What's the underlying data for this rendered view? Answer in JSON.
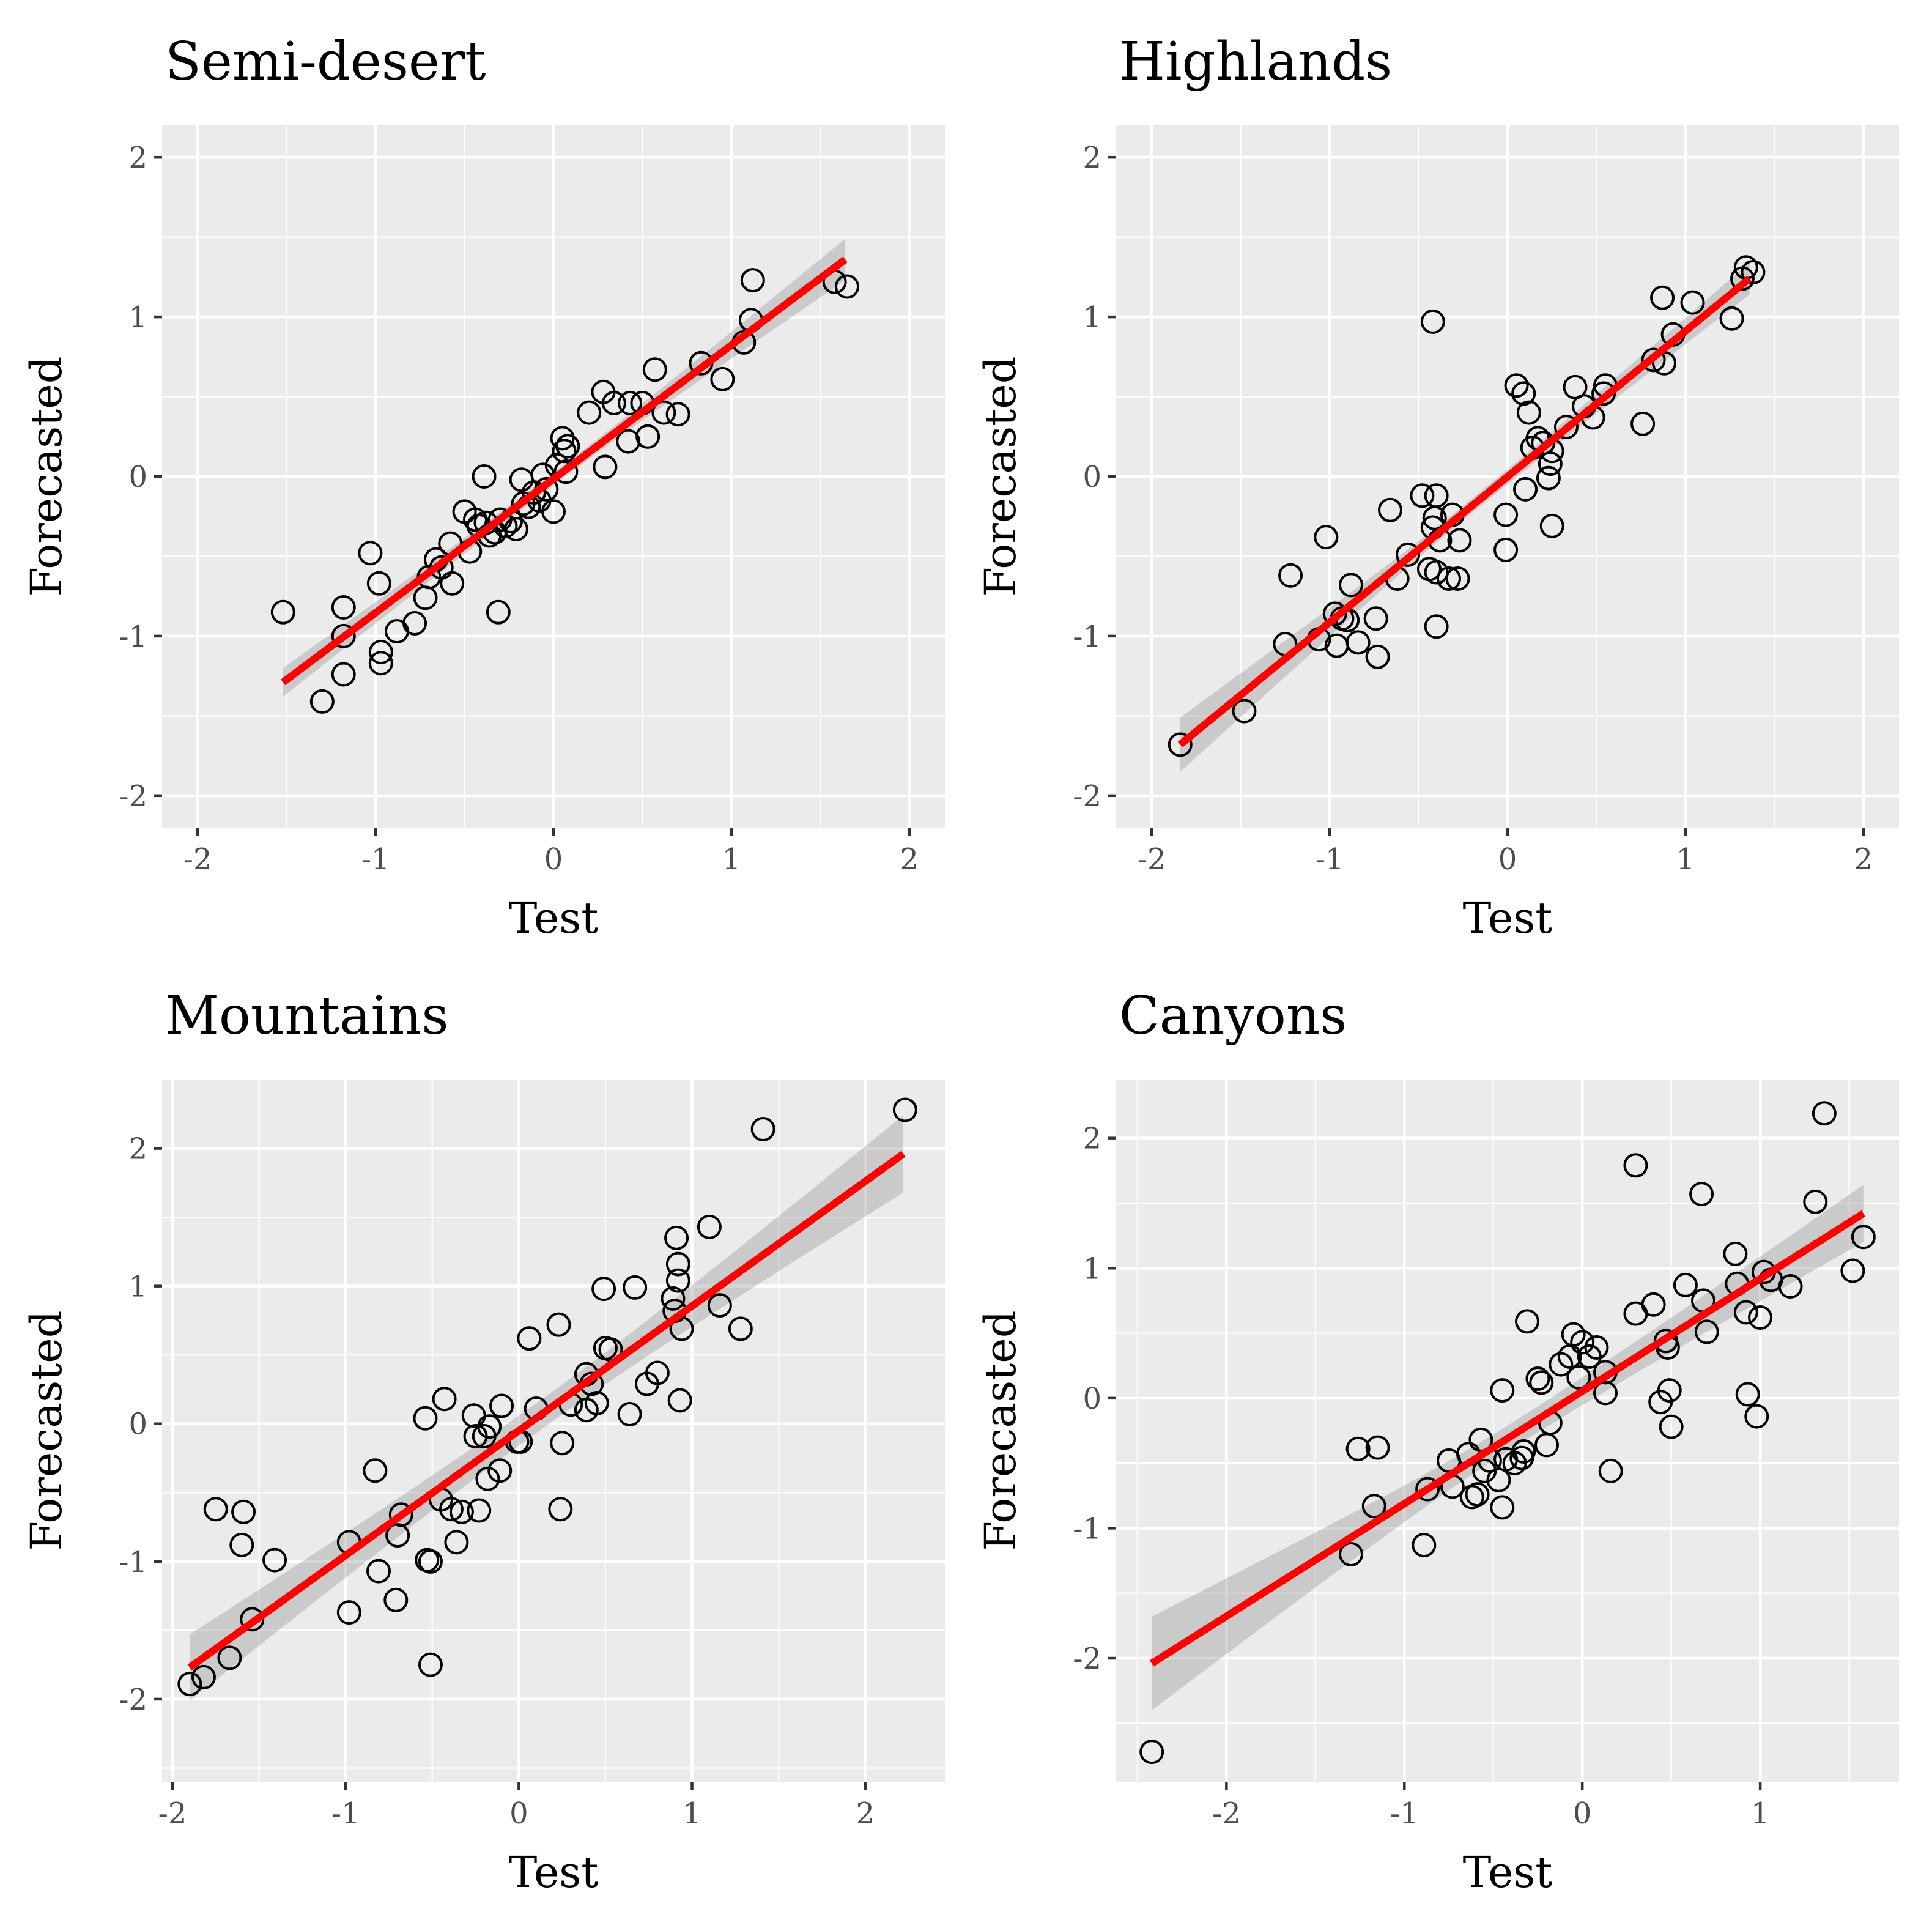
{
  "chart_data": [
    {
      "type": "scatter",
      "title": "Semi-desert",
      "xlabel": "Test",
      "ylabel": "Forecasted",
      "xlim": [
        -2.2,
        2.2
      ],
      "ylim": [
        -2.2,
        2.2
      ],
      "xticks": [
        -2,
        -1,
        0,
        1,
        2
      ],
      "yticks": [
        -2,
        -1,
        0,
        1,
        2
      ],
      "xtick_labels": [
        "-2",
        "-1",
        "0",
        "1",
        "2"
      ],
      "ytick_labels": [
        "-2",
        "-1",
        "0",
        "1",
        "2"
      ],
      "fit": {
        "x": [
          -1.52,
          1.64
        ],
        "y": [
          -1.29,
          1.36
        ],
        "se_halfwidth": [
          0.09,
          0.13
        ],
        "color": "#ff0000"
      },
      "points": [
        [
          -1.52,
          -0.85
        ],
        [
          -1.3,
          -1.41
        ],
        [
          -1.18,
          -0.82
        ],
        [
          -1.18,
          -1.0
        ],
        [
          -1.18,
          -1.24
        ],
        [
          -1.03,
          -0.48
        ],
        [
          -0.98,
          -0.67
        ],
        [
          -0.97,
          -1.1
        ],
        [
          -0.97,
          -1.17
        ],
        [
          -0.88,
          -0.97
        ],
        [
          -0.78,
          -0.92
        ],
        [
          -0.72,
          -0.76
        ],
        [
          -0.7,
          -0.63
        ],
        [
          -0.66,
          -0.52
        ],
        [
          -0.63,
          -0.57
        ],
        [
          -0.58,
          -0.42
        ],
        [
          -0.57,
          -0.67
        ],
        [
          -0.5,
          -0.22
        ],
        [
          -0.47,
          -0.47
        ],
        [
          -0.44,
          -0.27
        ],
        [
          -0.42,
          -0.31
        ],
        [
          -0.39,
          0.0
        ],
        [
          -0.38,
          -0.29
        ],
        [
          -0.36,
          -0.37
        ],
        [
          -0.33,
          -0.35
        ],
        [
          -0.31,
          -0.85
        ],
        [
          -0.3,
          -0.27
        ],
        [
          -0.27,
          -0.31
        ],
        [
          -0.24,
          -0.28
        ],
        [
          -0.21,
          -0.33
        ],
        [
          -0.18,
          -0.02
        ],
        [
          -0.17,
          -0.17
        ],
        [
          -0.14,
          -0.19
        ],
        [
          -0.11,
          -0.1
        ],
        [
          -0.08,
          -0.15
        ],
        [
          -0.06,
          0.01
        ],
        [
          -0.04,
          -0.08
        ],
        [
          0.0,
          -0.22
        ],
        [
          0.02,
          0.07
        ],
        [
          0.05,
          0.24
        ],
        [
          0.06,
          0.16
        ],
        [
          0.07,
          0.03
        ],
        [
          0.08,
          0.19
        ],
        [
          0.2,
          0.4
        ],
        [
          0.28,
          0.53
        ],
        [
          0.29,
          0.06
        ],
        [
          0.34,
          0.46
        ],
        [
          0.42,
          0.22
        ],
        [
          0.43,
          0.46
        ],
        [
          0.5,
          0.46
        ],
        [
          0.53,
          0.25
        ],
        [
          0.57,
          0.67
        ],
        [
          0.62,
          0.4
        ],
        [
          0.7,
          0.39
        ],
        [
          0.83,
          0.71
        ],
        [
          0.95,
          0.61
        ],
        [
          1.07,
          0.84
        ],
        [
          1.11,
          0.98
        ],
        [
          1.12,
          1.23
        ],
        [
          1.58,
          1.22
        ],
        [
          1.65,
          1.19
        ]
      ]
    },
    {
      "type": "scatter",
      "title": "Highlands",
      "xlabel": "Test",
      "ylabel": "Forecasted",
      "xlim": [
        -2.2,
        2.2
      ],
      "ylim": [
        -2.2,
        2.2
      ],
      "xticks": [
        -2,
        -1,
        0,
        1,
        2
      ],
      "yticks": [
        -2,
        -1,
        0,
        1,
        2
      ],
      "xtick_labels": [
        "-2",
        "-1",
        "0",
        "1",
        "2"
      ],
      "ytick_labels": [
        "-2",
        "-1",
        "0",
        "1",
        "2"
      ],
      "fit": {
        "x": [
          -1.84,
          1.36
        ],
        "y": [
          -1.68,
          1.24
        ],
        "se_halfwidth": [
          0.17,
          0.1
        ],
        "color": "#ff0000"
      },
      "points": [
        [
          -1.84,
          -1.68
        ],
        [
          -1.48,
          -1.47
        ],
        [
          -1.25,
          -1.05
        ],
        [
          -1.22,
          -0.62
        ],
        [
          -1.06,
          -1.02
        ],
        [
          -1.02,
          -0.38
        ],
        [
          -0.97,
          -0.86
        ],
        [
          -0.96,
          -1.06
        ],
        [
          -0.93,
          -0.89
        ],
        [
          -0.9,
          -0.9
        ],
        [
          -0.88,
          -0.68
        ],
        [
          -0.84,
          -1.04
        ],
        [
          -0.74,
          -0.89
        ],
        [
          -0.73,
          -1.13
        ],
        [
          -0.66,
          -0.21
        ],
        [
          -0.62,
          -0.64
        ],
        [
          -0.56,
          -0.49
        ],
        [
          -0.48,
          -0.12
        ],
        [
          -0.44,
          -0.58
        ],
        [
          -0.42,
          0.97
        ],
        [
          -0.42,
          -0.32
        ],
        [
          -0.41,
          -0.26
        ],
        [
          -0.4,
          -0.12
        ],
        [
          -0.4,
          -0.6
        ],
        [
          -0.4,
          -0.94
        ],
        [
          -0.38,
          -0.4
        ],
        [
          -0.33,
          -0.64
        ],
        [
          -0.31,
          -0.24
        ],
        [
          -0.28,
          -0.64
        ],
        [
          -0.27,
          -0.4
        ],
        [
          -0.01,
          -0.24
        ],
        [
          -0.01,
          -0.46
        ],
        [
          0.05,
          0.57
        ],
        [
          0.09,
          0.52
        ],
        [
          0.1,
          -0.08
        ],
        [
          0.12,
          0.4
        ],
        [
          0.14,
          0.18
        ],
        [
          0.17,
          0.24
        ],
        [
          0.2,
          0.21
        ],
        [
          0.23,
          -0.01
        ],
        [
          0.24,
          0.08
        ],
        [
          0.25,
          0.16
        ],
        [
          0.25,
          -0.31
        ],
        [
          0.33,
          0.31
        ],
        [
          0.38,
          0.56
        ],
        [
          0.43,
          0.44
        ],
        [
          0.48,
          0.37
        ],
        [
          0.54,
          0.52
        ],
        [
          0.55,
          0.57
        ],
        [
          0.76,
          0.33
        ],
        [
          0.82,
          0.73
        ],
        [
          0.87,
          1.12
        ],
        [
          0.88,
          0.71
        ],
        [
          0.93,
          0.89
        ],
        [
          1.04,
          1.09
        ],
        [
          1.26,
          0.99
        ],
        [
          1.32,
          1.24
        ],
        [
          1.34,
          1.31
        ],
        [
          1.38,
          1.28
        ]
      ]
    },
    {
      "type": "scatter",
      "title": "Mountains",
      "xlabel": "Test",
      "ylabel": "Forecasted",
      "xlim": [
        -2.06,
        2.46
      ],
      "ylim": [
        -2.6,
        2.5
      ],
      "xticks": [
        -2,
        -1,
        0,
        1,
        2
      ],
      "yticks": [
        -2,
        -1,
        0,
        1,
        2
      ],
      "xtick_labels": [
        "-2",
        "-1",
        "0",
        "1",
        "2"
      ],
      "ytick_labels": [
        "-2",
        "-1",
        "0",
        "1",
        "2"
      ],
      "fit": {
        "x": [
          -1.9,
          2.22
        ],
        "y": [
          -1.77,
          1.96
        ],
        "se_halfwidth": [
          0.24,
          0.28
        ],
        "color": "#ff0000"
      },
      "points": [
        [
          -1.9,
          -1.89
        ],
        [
          -1.82,
          -1.84
        ],
        [
          -1.75,
          -0.62
        ],
        [
          -1.67,
          -1.7
        ],
        [
          -1.6,
          -0.88
        ],
        [
          -1.59,
          -0.64
        ],
        [
          -1.54,
          -1.42
        ],
        [
          -1.41,
          -0.99
        ],
        [
          -0.98,
          -0.86
        ],
        [
          -0.98,
          -1.37
        ],
        [
          -0.83,
          -0.34
        ],
        [
          -0.81,
          -1.07
        ],
        [
          -0.71,
          -1.28
        ],
        [
          -0.7,
          -0.81
        ],
        [
          -0.68,
          -0.66
        ],
        [
          -0.54,
          0.04
        ],
        [
          -0.53,
          -0.99
        ],
        [
          -0.51,
          -1.0
        ],
        [
          -0.51,
          -1.75
        ],
        [
          -0.45,
          -0.55
        ],
        [
          -0.43,
          0.18
        ],
        [
          -0.39,
          -0.62
        ],
        [
          -0.36,
          -0.86
        ],
        [
          -0.33,
          -0.64
        ],
        [
          -0.26,
          0.06
        ],
        [
          -0.25,
          -0.09
        ],
        [
          -0.23,
          -0.63
        ],
        [
          -0.2,
          -0.09
        ],
        [
          -0.18,
          -0.4
        ],
        [
          -0.17,
          -0.02
        ],
        [
          -0.11,
          -0.34
        ],
        [
          -0.1,
          0.13
        ],
        [
          -0.01,
          -0.13
        ],
        [
          0.01,
          -0.13
        ],
        [
          0.06,
          0.62
        ],
        [
          0.1,
          0.11
        ],
        [
          0.23,
          0.72
        ],
        [
          0.24,
          -0.62
        ],
        [
          0.25,
          -0.14
        ],
        [
          0.3,
          0.14
        ],
        [
          0.39,
          0.36
        ],
        [
          0.39,
          0.1
        ],
        [
          0.42,
          0.29
        ],
        [
          0.45,
          0.15
        ],
        [
          0.49,
          0.98
        ],
        [
          0.5,
          0.55
        ],
        [
          0.53,
          0.54
        ],
        [
          0.64,
          0.07
        ],
        [
          0.67,
          0.99
        ],
        [
          0.74,
          0.29
        ],
        [
          0.8,
          0.37
        ],
        [
          0.89,
          0.91
        ],
        [
          0.9,
          0.82
        ],
        [
          0.91,
          1.35
        ],
        [
          0.92,
          1.04
        ],
        [
          0.92,
          1.16
        ],
        [
          0.93,
          0.17
        ],
        [
          0.94,
          0.69
        ],
        [
          1.1,
          1.43
        ],
        [
          1.16,
          0.86
        ],
        [
          1.28,
          0.69
        ],
        [
          1.41,
          2.14
        ],
        [
          2.23,
          2.28
        ]
      ]
    },
    {
      "type": "scatter",
      "title": "Canyons",
      "xlabel": "Test",
      "ylabel": "Forecasted",
      "xlim": [
        -2.62,
        1.78
      ],
      "ylim": [
        -2.95,
        2.45
      ],
      "xticks": [
        -2,
        -1,
        0,
        1
      ],
      "yticks": [
        -2,
        -1,
        0,
        1,
        2
      ],
      "xtick_labels": [
        "-2",
        "-1",
        "0",
        "1"
      ],
      "ytick_labels": [
        "-2",
        "-1",
        "0",
        "1",
        "2"
      ],
      "fit": {
        "x": [
          -2.42,
          1.58
        ],
        "y": [
          -2.04,
          1.42
        ],
        "se_halfwidth": [
          0.36,
          0.22
        ],
        "color": "#ff0000"
      },
      "points": [
        [
          -2.42,
          -2.72
        ],
        [
          -1.3,
          -1.2
        ],
        [
          -1.26,
          -0.39
        ],
        [
          -1.17,
          -0.83
        ],
        [
          -1.15,
          -0.38
        ],
        [
          -0.89,
          -1.13
        ],
        [
          -0.87,
          -0.7
        ],
        [
          -0.75,
          -0.48
        ],
        [
          -0.73,
          -0.68
        ],
        [
          -0.64,
          -0.43
        ],
        [
          -0.62,
          -0.76
        ],
        [
          -0.59,
          -0.74
        ],
        [
          -0.57,
          -0.32
        ],
        [
          -0.55,
          -0.56
        ],
        [
          -0.52,
          -0.48
        ],
        [
          -0.47,
          -0.63
        ],
        [
          -0.45,
          0.06
        ],
        [
          -0.45,
          -0.84
        ],
        [
          -0.43,
          -0.47
        ],
        [
          -0.38,
          -0.5
        ],
        [
          -0.34,
          -0.46
        ],
        [
          -0.33,
          -0.41
        ],
        [
          -0.31,
          0.59
        ],
        [
          -0.25,
          0.15
        ],
        [
          -0.23,
          0.12
        ],
        [
          -0.2,
          -0.36
        ],
        [
          -0.18,
          -0.19
        ],
        [
          -0.12,
          0.26
        ],
        [
          -0.07,
          0.32
        ],
        [
          -0.05,
          0.49
        ],
        [
          -0.02,
          0.16
        ],
        [
          0.0,
          0.43
        ],
        [
          0.04,
          0.32
        ],
        [
          0.08,
          0.39
        ],
        [
          0.13,
          0.2
        ],
        [
          0.13,
          0.04
        ],
        [
          0.16,
          -0.56
        ],
        [
          0.3,
          1.79
        ],
        [
          0.3,
          0.65
        ],
        [
          0.4,
          0.72
        ],
        [
          0.44,
          -0.03
        ],
        [
          0.47,
          0.44
        ],
        [
          0.48,
          0.39
        ],
        [
          0.49,
          0.06
        ],
        [
          0.5,
          -0.22
        ],
        [
          0.58,
          0.87
        ],
        [
          0.67,
          1.57
        ],
        [
          0.68,
          0.75
        ],
        [
          0.7,
          0.51
        ],
        [
          0.86,
          1.11
        ],
        [
          0.87,
          0.88
        ],
        [
          0.92,
          0.66
        ],
        [
          0.93,
          0.03
        ],
        [
          0.98,
          -0.14
        ],
        [
          1.0,
          0.62
        ],
        [
          1.02,
          0.97
        ],
        [
          1.06,
          0.91
        ],
        [
          1.17,
          0.86
        ],
        [
          1.31,
          1.51
        ],
        [
          1.36,
          2.19
        ],
        [
          1.52,
          0.98
        ],
        [
          1.58,
          1.24
        ]
      ]
    }
  ]
}
